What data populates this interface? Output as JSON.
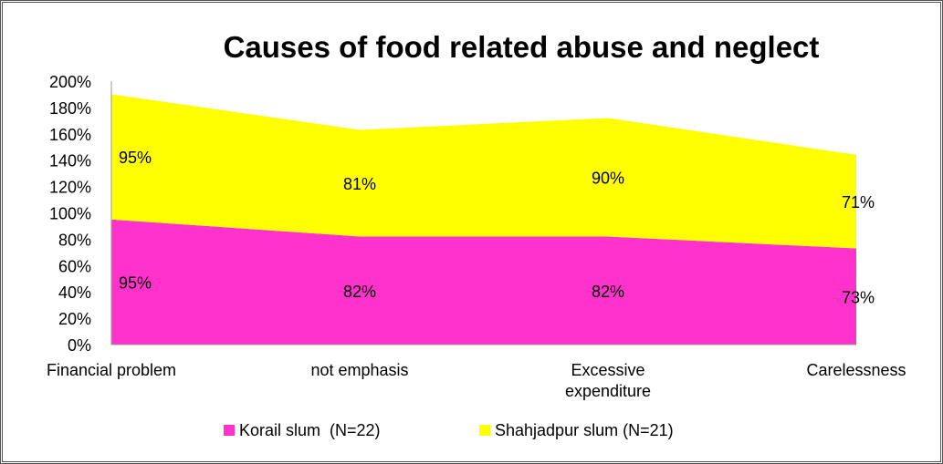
{
  "chart_data": {
    "type": "area",
    "stacked": true,
    "title": "Causes of food related  abuse and neglect",
    "categories": [
      "Financial problem",
      "not emphasis",
      "Excessive expenditure",
      "Carelessness"
    ],
    "series": [
      {
        "name": "Korail slum  (N=22)",
        "values": [
          95,
          82,
          82,
          73
        ],
        "labels": [
          "95%",
          "82%",
          "82%",
          "73%"
        ],
        "color": "#ff33cc"
      },
      {
        "name": "Shahjadpur slum (N=21)",
        "values": [
          95,
          81,
          90,
          71
        ],
        "labels": [
          "95%",
          "81%",
          "90%",
          "71%"
        ],
        "color": "#ffff00"
      }
    ],
    "ylim": [
      0,
      200
    ],
    "yticks": [
      "0%",
      "20%",
      "40%",
      "60%",
      "80%",
      "100%",
      "120%",
      "140%",
      "160%",
      "180%",
      "200%"
    ],
    "grid": false,
    "legend": "bottom"
  }
}
